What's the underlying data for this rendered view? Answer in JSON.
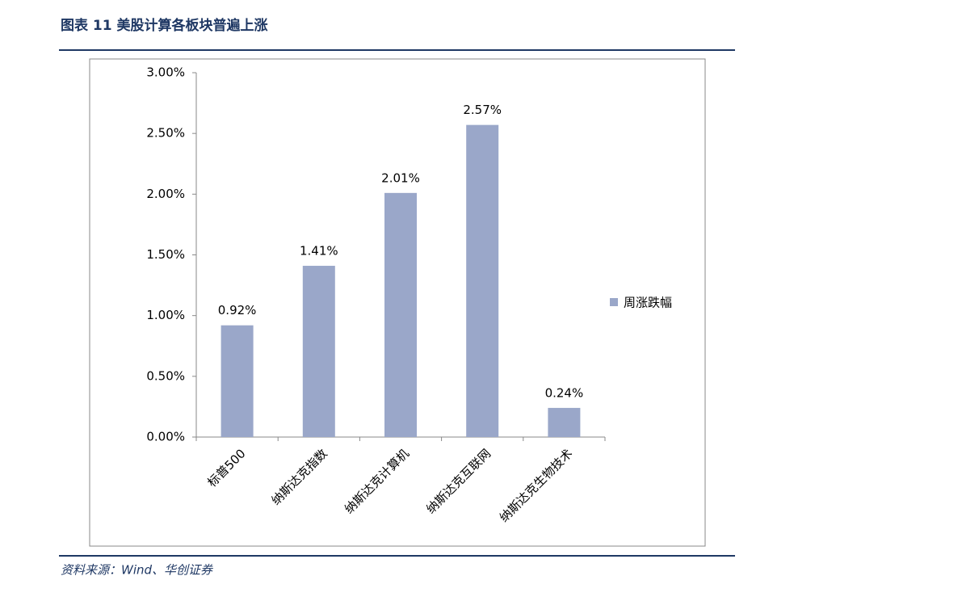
{
  "chart_data": {
    "type": "bar",
    "title": "图表 11 美股计算各板块普遍上涨",
    "source": "资料来源：Wind、华创证券",
    "categories": [
      "标普500",
      "纳斯达克指数",
      "纳斯达克计算机",
      "纳斯达克互联网",
      "纳斯达克生物技术"
    ],
    "series": [
      {
        "name": "周涨跌幅",
        "color": "#9aa7c9",
        "values": [
          0.92,
          1.41,
          2.01,
          2.57,
          0.24
        ],
        "value_labels": [
          "0.92%",
          "1.41%",
          "2.01%",
          "2.57%",
          "0.24%"
        ]
      }
    ],
    "ylim": [
      0,
      3
    ],
    "yticks": [
      {
        "value": 0,
        "label": "0.00%"
      },
      {
        "value": 0.5,
        "label": "0.50%"
      },
      {
        "value": 1,
        "label": "1.00%"
      },
      {
        "value": 1.5,
        "label": "1.50%"
      },
      {
        "value": 2,
        "label": "2.00%"
      },
      {
        "value": 2.5,
        "label": "2.50%"
      },
      {
        "value": 3,
        "label": "3.00%"
      }
    ],
    "legend": "right"
  }
}
